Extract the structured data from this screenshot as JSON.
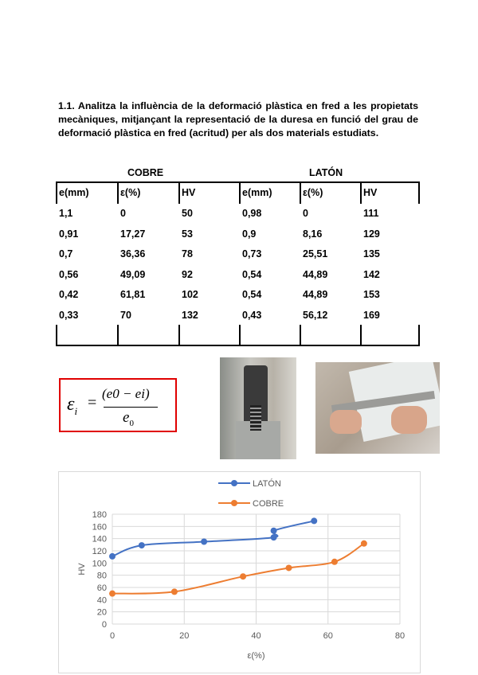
{
  "question": "1.1. Analitza la influència de la deformació plàstica en fred a les propietats mecàniques, mitjançant la representació de la duresa en funció del grau de deformació plàstica en fred (acritud) per als dos materials estudiats.",
  "table": {
    "materials": [
      "COBRE",
      "LATÓN"
    ],
    "headers": [
      "e(mm)",
      "ε(%)",
      "HV",
      "e(mm)",
      "ε(%)",
      "HV"
    ],
    "rows": [
      [
        "1,1",
        "0",
        "50",
        "0,98",
        "0",
        "111"
      ],
      [
        "0,91",
        "17,27",
        "53",
        "0,9",
        "8,16",
        "129"
      ],
      [
        "0,7",
        "36,36",
        "78",
        "0,73",
        "25,51",
        "135"
      ],
      [
        "0,56",
        "49,09",
        "92",
        "0,54",
        "44,89",
        "142"
      ],
      [
        "0,42",
        "61,81",
        "102",
        "0,54",
        "44,89",
        "153"
      ],
      [
        "0,33",
        "70",
        "132",
        "0,43",
        "56,12",
        "169"
      ]
    ]
  },
  "formula": {
    "lhs": "εi",
    "eq": "=",
    "numerator": "(e0 − ei)",
    "denominator": "e0",
    "border_color": "#e00000"
  },
  "photos": [
    {
      "icon": "hardness-tester-photo"
    },
    {
      "icon": "micrometer-photo"
    }
  ],
  "chart_data": {
    "type": "line",
    "xlabel": "ε(%)",
    "ylabel": "HV",
    "xlim": [
      0,
      80
    ],
    "ylim": [
      0,
      180
    ],
    "xticks": [
      "0",
      "20",
      "40",
      "60",
      "80"
    ],
    "yticks": [
      "0",
      "20",
      "40",
      "60",
      "80",
      "100",
      "120",
      "140",
      "160",
      "180"
    ],
    "grid": true,
    "legend": "top",
    "series": [
      {
        "name": "LATÓN",
        "color": "#4472c4",
        "x": [
          0,
          8.16,
          25.51,
          44.89,
          44.89,
          56.12
        ],
        "y": [
          111,
          129,
          135,
          142,
          153,
          169
        ]
      },
      {
        "name": "COBRE",
        "color": "#ed7d31",
        "x": [
          0,
          17.27,
          36.36,
          49.09,
          61.81,
          70
        ],
        "y": [
          50,
          53,
          78,
          92,
          102,
          132
        ]
      }
    ]
  }
}
